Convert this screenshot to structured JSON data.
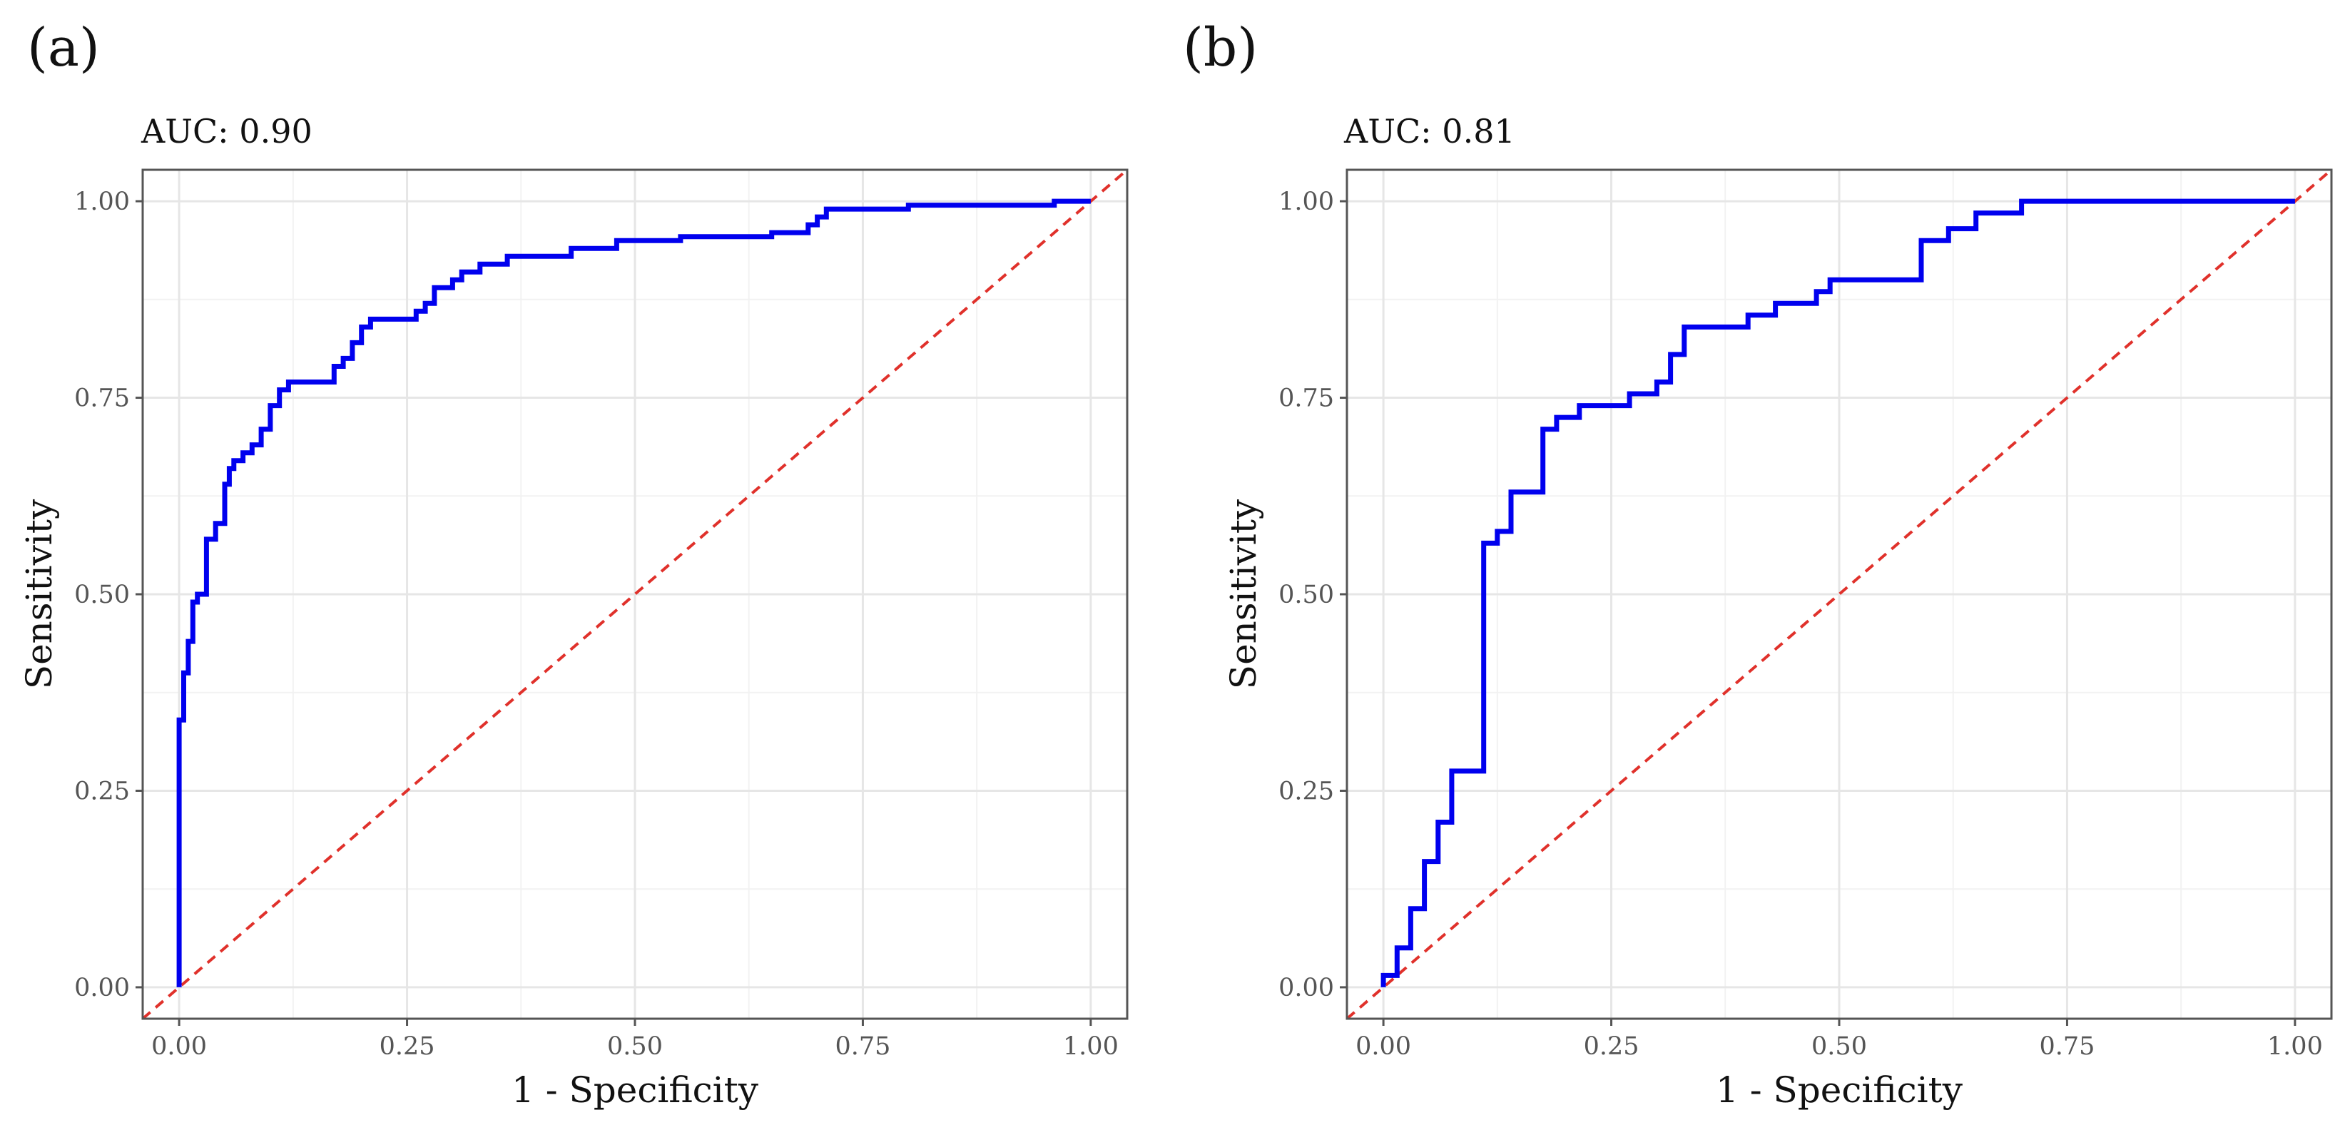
{
  "colors": {
    "roc_line": "#0000ee",
    "reference_line": "#e0312b",
    "grid_major": "#e6e6e6",
    "grid_minor": "#f2f2f2",
    "panel_border": "#555555"
  },
  "chart_data": [
    {
      "type": "line",
      "panel_label": "(a)",
      "title": "AUC: 0.90",
      "xlabel": "1 - Specificity",
      "ylabel": "Sensitivity",
      "xlim": [
        0,
        1
      ],
      "ylim": [
        0,
        1
      ],
      "x_ticks": [
        "0.00",
        "0.25",
        "0.50",
        "0.75",
        "1.00"
      ],
      "y_ticks": [
        "0.00",
        "0.25",
        "0.50",
        "0.75",
        "1.00"
      ],
      "grid": true,
      "reference_line": "diagonal, dashed",
      "series": [
        {
          "x": [
            0,
            0,
            0.005,
            0.005,
            0.01,
            0.01,
            0.015,
            0.015,
            0.02,
            0.02,
            0.03,
            0.03,
            0.04,
            0.04,
            0.05,
            0.05,
            0.055,
            0.055,
            0.06,
            0.06,
            0.07,
            0.07,
            0.08,
            0.08,
            0.09,
            0.09,
            0.1,
            0.1,
            0.11,
            0.11,
            0.12,
            0.12,
            0.17,
            0.17,
            0.18,
            0.18,
            0.19,
            0.19,
            0.2,
            0.2,
            0.21,
            0.21,
            0.26,
            0.26,
            0.27,
            0.27,
            0.28,
            0.28,
            0.29,
            0.29,
            0.3,
            0.3,
            0.31,
            0.31,
            0.33,
            0.33,
            0.36,
            0.36,
            0.38,
            0.38,
            0.43,
            0.43,
            0.48,
            0.48,
            0.55,
            0.55,
            0.65,
            0.65,
            0.69,
            0.69,
            0.7,
            0.7,
            0.71,
            0.71,
            0.8,
            0.8,
            0.96,
            0.96,
            1
          ],
          "y": [
            0,
            0.34,
            0.34,
            0.4,
            0.4,
            0.44,
            0.44,
            0.49,
            0.49,
            0.5,
            0.5,
            0.57,
            0.57,
            0.59,
            0.59,
            0.64,
            0.64,
            0.66,
            0.66,
            0.67,
            0.67,
            0.68,
            0.68,
            0.69,
            0.69,
            0.71,
            0.71,
            0.74,
            0.74,
            0.76,
            0.76,
            0.77,
            0.77,
            0.79,
            0.79,
            0.8,
            0.8,
            0.82,
            0.82,
            0.84,
            0.84,
            0.85,
            0.85,
            0.86,
            0.86,
            0.87,
            0.87,
            0.89,
            0.89,
            0.89,
            0.89,
            0.9,
            0.9,
            0.91,
            0.91,
            0.92,
            0.92,
            0.93,
            0.93,
            0.93,
            0.93,
            0.94,
            0.94,
            0.95,
            0.95,
            0.955,
            0.955,
            0.96,
            0.96,
            0.97,
            0.97,
            0.98,
            0.98,
            0.99,
            0.99,
            0.995,
            0.995,
            1,
            1
          ]
        }
      ]
    },
    {
      "type": "line",
      "panel_label": "(b)",
      "title": "AUC: 0.81",
      "xlabel": "1 - Specificity",
      "ylabel": "Sensitivity",
      "xlim": [
        0,
        1
      ],
      "ylim": [
        0,
        1
      ],
      "x_ticks": [
        "0.00",
        "0.25",
        "0.50",
        "0.75",
        "1.00"
      ],
      "y_ticks": [
        "0.00",
        "0.25",
        "0.50",
        "0.75",
        "1.00"
      ],
      "grid": true,
      "reference_line": "diagonal, dashed",
      "series": [
        {
          "x": [
            0,
            0,
            0.015,
            0.015,
            0.03,
            0.03,
            0.045,
            0.045,
            0.06,
            0.06,
            0.075,
            0.075,
            0.09,
            0.09,
            0.11,
            0.11,
            0.125,
            0.125,
            0.14,
            0.14,
            0.175,
            0.175,
            0.19,
            0.19,
            0.215,
            0.215,
            0.27,
            0.27,
            0.3,
            0.3,
            0.315,
            0.315,
            0.33,
            0.33,
            0.4,
            0.4,
            0.43,
            0.43,
            0.475,
            0.475,
            0.49,
            0.49,
            0.59,
            0.59,
            0.62,
            0.62,
            0.65,
            0.65,
            0.7,
            0.7,
            1
          ],
          "y": [
            0,
            0.015,
            0.015,
            0.05,
            0.05,
            0.1,
            0.1,
            0.16,
            0.16,
            0.21,
            0.21,
            0.275,
            0.275,
            0.275,
            0.275,
            0.565,
            0.565,
            0.58,
            0.58,
            0.63,
            0.63,
            0.71,
            0.71,
            0.725,
            0.725,
            0.74,
            0.74,
            0.755,
            0.755,
            0.77,
            0.77,
            0.805,
            0.805,
            0.84,
            0.84,
            0.855,
            0.855,
            0.87,
            0.87,
            0.885,
            0.885,
            0.9,
            0.9,
            0.95,
            0.95,
            0.965,
            0.965,
            0.985,
            0.985,
            1,
            1
          ]
        }
      ]
    }
  ]
}
